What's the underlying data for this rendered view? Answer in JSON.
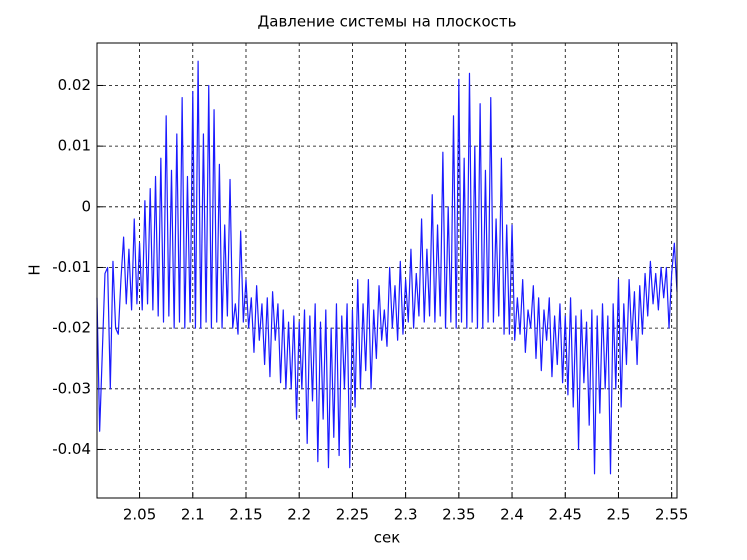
{
  "chart_data": {
    "type": "line",
    "title": "Давление системы на плоскость",
    "xlabel": "сек",
    "ylabel": "Н",
    "xlim": [
      2.01,
      2.555
    ],
    "ylim": [
      -0.048,
      0.027
    ],
    "xticks": [
      2.05,
      2.1,
      2.15,
      2.2,
      2.25,
      2.3,
      2.35,
      2.4,
      2.45,
      2.5,
      2.55
    ],
    "yticks": [
      -0.04,
      -0.03,
      -0.02,
      -0.01,
      0,
      0.01,
      0.02
    ],
    "grid": true,
    "x": [
      2.01,
      2.0125,
      2.015,
      2.0175,
      2.02,
      2.0225,
      2.025,
      2.0275,
      2.03,
      2.0325,
      2.035,
      2.0375,
      2.04,
      2.0425,
      2.045,
      2.0475,
      2.05,
      2.0525,
      2.055,
      2.0575,
      2.06,
      2.0625,
      2.065,
      2.0675,
      2.07,
      2.0725,
      2.075,
      2.0775,
      2.08,
      2.0825,
      2.085,
      2.0875,
      2.09,
      2.0925,
      2.095,
      2.0975,
      2.1,
      2.1025,
      2.105,
      2.1075,
      2.11,
      2.1125,
      2.115,
      2.1175,
      2.12,
      2.1225,
      2.125,
      2.1275,
      2.13,
      2.1325,
      2.135,
      2.1375,
      2.14,
      2.1425,
      2.145,
      2.1475,
      2.15,
      2.1525,
      2.155,
      2.1575,
      2.16,
      2.1625,
      2.165,
      2.1675,
      2.17,
      2.1725,
      2.175,
      2.1775,
      2.18,
      2.1825,
      2.185,
      2.1875,
      2.19,
      2.1925,
      2.195,
      2.1975,
      2.2,
      2.2025,
      2.205,
      2.2075,
      2.21,
      2.2125,
      2.215,
      2.2175,
      2.22,
      2.2225,
      2.225,
      2.2275,
      2.23,
      2.2325,
      2.235,
      2.2375,
      2.24,
      2.2425,
      2.245,
      2.2475,
      2.25,
      2.2525,
      2.255,
      2.2575,
      2.26,
      2.2625,
      2.265,
      2.2675,
      2.27,
      2.2725,
      2.275,
      2.2775,
      2.28,
      2.2825,
      2.285,
      2.2875,
      2.29,
      2.2925,
      2.295,
      2.2975,
      2.3,
      2.3025,
      2.305,
      2.3075,
      2.31,
      2.3125,
      2.315,
      2.3175,
      2.32,
      2.3225,
      2.325,
      2.3275,
      2.33,
      2.3325,
      2.335,
      2.3375,
      2.34,
      2.3425,
      2.345,
      2.3475,
      2.35,
      2.3525,
      2.355,
      2.3575,
      2.36,
      2.3625,
      2.365,
      2.3675,
      2.37,
      2.3725,
      2.375,
      2.3775,
      2.38,
      2.3825,
      2.385,
      2.3875,
      2.39,
      2.3925,
      2.395,
      2.3975,
      2.4,
      2.4025,
      2.405,
      2.4075,
      2.41,
      2.4125,
      2.415,
      2.4175,
      2.42,
      2.4225,
      2.425,
      2.4275,
      2.43,
      2.4325,
      2.435,
      2.4375,
      2.44,
      2.4425,
      2.445,
      2.4475,
      2.45,
      2.4525,
      2.455,
      2.4575,
      2.46,
      2.4625,
      2.465,
      2.4675,
      2.47,
      2.4725,
      2.475,
      2.4775,
      2.48,
      2.4825,
      2.485,
      2.4875,
      2.49,
      2.4925,
      2.495,
      2.4975,
      2.5,
      2.5025,
      2.505,
      2.5075,
      2.51,
      2.5125,
      2.515,
      2.5175,
      2.52,
      2.5225,
      2.525,
      2.5275,
      2.53,
      2.5325,
      2.535,
      2.5375,
      2.54,
      2.5425,
      2.545,
      2.5475,
      2.55,
      2.5525,
      2.555
    ],
    "series": [
      {
        "color": "#1a1aff",
        "values": [
          -0.015,
          -0.037,
          -0.024,
          -0.011,
          -0.01,
          -0.03,
          -0.009,
          -0.02,
          -0.021,
          -0.012,
          -0.005,
          -0.016,
          -0.007,
          -0.017,
          -0.002,
          -0.016,
          -0.006,
          -0.017,
          0.001,
          -0.016,
          0.003,
          -0.017,
          0.005,
          -0.018,
          0.008,
          -0.019,
          0.015,
          -0.018,
          0.006,
          -0.02,
          0.012,
          -0.019,
          0.018,
          -0.02,
          0.005,
          -0.019,
          0.019,
          -0.02,
          0.024,
          -0.02,
          0.012,
          -0.019,
          0.02,
          -0.02,
          0.016,
          -0.019,
          0.007,
          -0.02,
          -0.003,
          -0.018,
          0.0045,
          -0.02,
          -0.016,
          -0.021,
          -0.004,
          -0.019,
          -0.012,
          -0.02,
          -0.015,
          -0.024,
          -0.013,
          -0.022,
          -0.016,
          -0.026,
          -0.015,
          -0.028,
          -0.014,
          -0.022,
          -0.016,
          -0.029,
          -0.017,
          -0.03,
          -0.019,
          -0.03,
          -0.018,
          -0.035,
          -0.019,
          -0.03,
          -0.017,
          -0.039,
          -0.018,
          -0.032,
          -0.016,
          -0.042,
          -0.019,
          -0.035,
          -0.017,
          -0.043,
          -0.02,
          -0.038,
          -0.016,
          -0.041,
          -0.018,
          -0.03,
          -0.016,
          -0.043,
          -0.017,
          -0.033,
          -0.012,
          -0.03,
          -0.016,
          -0.027,
          -0.012,
          -0.03,
          -0.017,
          -0.025,
          -0.013,
          -0.022,
          -0.017,
          -0.023,
          -0.01,
          -0.02,
          -0.013,
          -0.022,
          -0.009,
          -0.021,
          -0.012,
          -0.019,
          -0.007,
          -0.02,
          -0.011,
          -0.018,
          -0.002,
          -0.019,
          -0.007,
          -0.018,
          0.002,
          -0.019,
          -0.003,
          -0.018,
          0.009,
          -0.02,
          0.0,
          -0.019,
          0.015,
          -0.02,
          0.021,
          -0.019,
          0.008,
          -0.02,
          0.022,
          -0.019,
          0.01,
          -0.02,
          0.017,
          -0.02,
          0.006,
          -0.019,
          0.018,
          -0.019,
          -0.002,
          -0.018,
          0.008,
          -0.021,
          -0.003,
          -0.021,
          -0.003,
          -0.022,
          -0.015,
          -0.021,
          -0.012,
          -0.024,
          -0.017,
          -0.02,
          -0.013,
          -0.025,
          -0.015,
          -0.027,
          -0.017,
          -0.022,
          -0.015,
          -0.028,
          -0.018,
          -0.026,
          -0.016,
          -0.029,
          -0.018,
          -0.031,
          -0.015,
          -0.033,
          -0.018,
          -0.04,
          -0.017,
          -0.029,
          -0.019,
          -0.036,
          -0.017,
          -0.044,
          -0.018,
          -0.034,
          -0.016,
          -0.03,
          -0.018,
          -0.044,
          -0.016,
          -0.03,
          -0.012,
          -0.033,
          -0.016,
          -0.026,
          -0.012,
          -0.022,
          -0.014,
          -0.026,
          -0.013,
          -0.021,
          -0.011,
          -0.018,
          -0.009,
          -0.016,
          -0.011,
          -0.017,
          -0.01,
          -0.015,
          -0.01,
          -0.02,
          -0.011,
          -0.006,
          -0.014
        ]
      }
    ]
  }
}
